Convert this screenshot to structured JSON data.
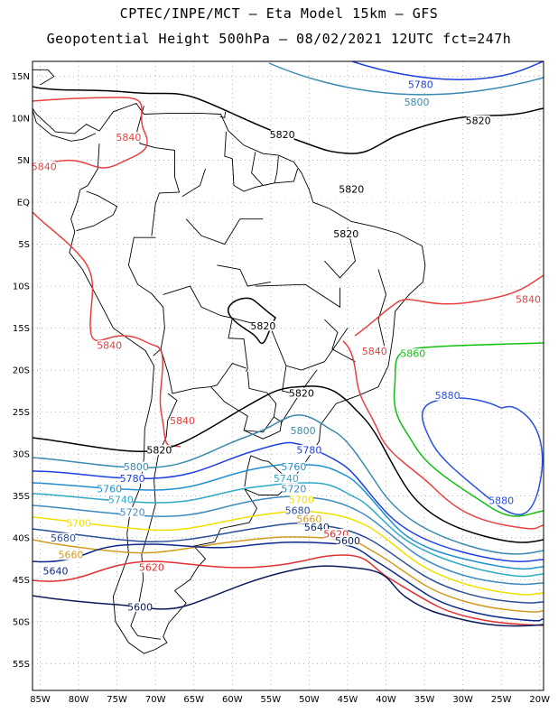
{
  "title": {
    "line1": "CPTEC/INPE/MCT –  Eta Model 15km – GFS",
    "line2": "Geopotential Height 500hPa – 08/02/2021 12UTC fct=247h"
  },
  "axes": {
    "lat_labels": [
      "15N",
      "10N",
      "5N",
      "EQ",
      "5S",
      "10S",
      "15S",
      "20S",
      "25S",
      "30S",
      "35S",
      "40S",
      "45S",
      "50S",
      "55S"
    ],
    "lon_labels": [
      "85W",
      "80W",
      "75W",
      "70W",
      "65W",
      "60W",
      "55W",
      "50W",
      "45W",
      "40W",
      "35W",
      "30W",
      "25W",
      "20W"
    ],
    "grid": "dotted"
  },
  "contours": {
    "levels": [
      5600,
      5620,
      5640,
      5660,
      5680,
      5700,
      5720,
      5740,
      5760,
      5780,
      5800,
      5820,
      5840,
      5860,
      5880
    ],
    "colors": {
      "5600": "#0b1a5c",
      "5620": "#e03030",
      "5640": "#0b2a8a",
      "5660": "#d49a1e",
      "5680": "#2a4f9a",
      "5700": "#f0e000",
      "5720": "#3c8ac0",
      "5740": "#30a8c8",
      "5760": "#2090d0",
      "5780": "#1e40e0",
      "5800": "#3a8ab0",
      "5820": "#000000",
      "5840": "#e84040",
      "5860": "#10c010",
      "5880": "#2a50e0"
    },
    "labels": [
      {
        "text": "5780",
        "level": 5780,
        "lon": -35.5,
        "lat": 13.8
      },
      {
        "text": "5800",
        "level": 5800,
        "lon": -36.0,
        "lat": 11.7
      },
      {
        "text": "5820",
        "level": 5820,
        "lon": -28.0,
        "lat": 9.5
      },
      {
        "text": "5820",
        "level": 5820,
        "lon": -53.5,
        "lat": 7.8
      },
      {
        "text": "5840",
        "level": 5840,
        "lon": -73.5,
        "lat": 7.5
      },
      {
        "text": "5840",
        "level": 5840,
        "lon": -84.5,
        "lat": 4.0
      },
      {
        "text": "5820",
        "level": 5820,
        "lon": -44.5,
        "lat": 1.3
      },
      {
        "text": "5820",
        "level": 5820,
        "lon": -45.2,
        "lat": -4.0
      },
      {
        "text": "5840",
        "level": 5840,
        "lon": -21.5,
        "lat": -11.8
      },
      {
        "text": "5820",
        "level": 5820,
        "lon": -56.0,
        "lat": -15.0
      },
      {
        "text": "5840",
        "level": 5840,
        "lon": -76.0,
        "lat": -17.3
      },
      {
        "text": "5840",
        "level": 5840,
        "lon": -41.5,
        "lat": -18.0
      },
      {
        "text": "5860",
        "level": 5860,
        "lon": -36.5,
        "lat": -18.3
      },
      {
        "text": "5820",
        "level": 5820,
        "lon": -51.0,
        "lat": -23.0
      },
      {
        "text": "5880",
        "level": 5880,
        "lon": -32.0,
        "lat": -23.3
      },
      {
        "text": "5840",
        "level": 5840,
        "lon": -66.5,
        "lat": -26.3
      },
      {
        "text": "5800",
        "level": 5800,
        "lon": -50.8,
        "lat": -27.5
      },
      {
        "text": "5820",
        "level": 5820,
        "lon": -69.5,
        "lat": -29.8
      },
      {
        "text": "5780",
        "level": 5780,
        "lon": -50.0,
        "lat": -29.8
      },
      {
        "text": "5800",
        "level": 5800,
        "lon": -72.5,
        "lat": -31.8
      },
      {
        "text": "5760",
        "level": 5760,
        "lon": -52.0,
        "lat": -31.8
      },
      {
        "text": "5780",
        "level": 5780,
        "lon": -73.0,
        "lat": -33.2
      },
      {
        "text": "5740",
        "level": 5740,
        "lon": -53.0,
        "lat": -33.2
      },
      {
        "text": "5760",
        "level": 5760,
        "lon": -76.0,
        "lat": -34.4
      },
      {
        "text": "5720",
        "level": 5720,
        "lon": -52.0,
        "lat": -34.4
      },
      {
        "text": "5740",
        "level": 5740,
        "lon": -74.5,
        "lat": -35.7
      },
      {
        "text": "5700",
        "level": 5700,
        "lon": -51.0,
        "lat": -35.7
      },
      {
        "text": "5720",
        "level": 5720,
        "lon": -73.0,
        "lat": -37.2
      },
      {
        "text": "5680",
        "level": 5680,
        "lon": -51.5,
        "lat": -37.0
      },
      {
        "text": "5700",
        "level": 5700,
        "lon": -80.0,
        "lat": -38.5
      },
      {
        "text": "5660",
        "level": 5660,
        "lon": -50.0,
        "lat": -38.0
      },
      {
        "text": "5640",
        "level": 5640,
        "lon": -49.0,
        "lat": -39.0
      },
      {
        "text": "5880",
        "level": 5880,
        "lon": -25.0,
        "lat": -35.8
      },
      {
        "text": "5620",
        "level": 5620,
        "lon": -46.5,
        "lat": -39.8
      },
      {
        "text": "5600",
        "level": 5600,
        "lon": -45.0,
        "lat": -40.6
      },
      {
        "text": "5680",
        "level": 5680,
        "lon": -82.0,
        "lat": -40.3
      },
      {
        "text": "5660",
        "level": 5660,
        "lon": -81.0,
        "lat": -42.3
      },
      {
        "text": "5640",
        "level": 5640,
        "lon": -83.0,
        "lat": -44.2
      },
      {
        "text": "5620",
        "level": 5620,
        "lon": -70.5,
        "lat": -43.8
      },
      {
        "text": "5600",
        "level": 5600,
        "lon": -72.0,
        "lat": -48.5
      }
    ]
  }
}
